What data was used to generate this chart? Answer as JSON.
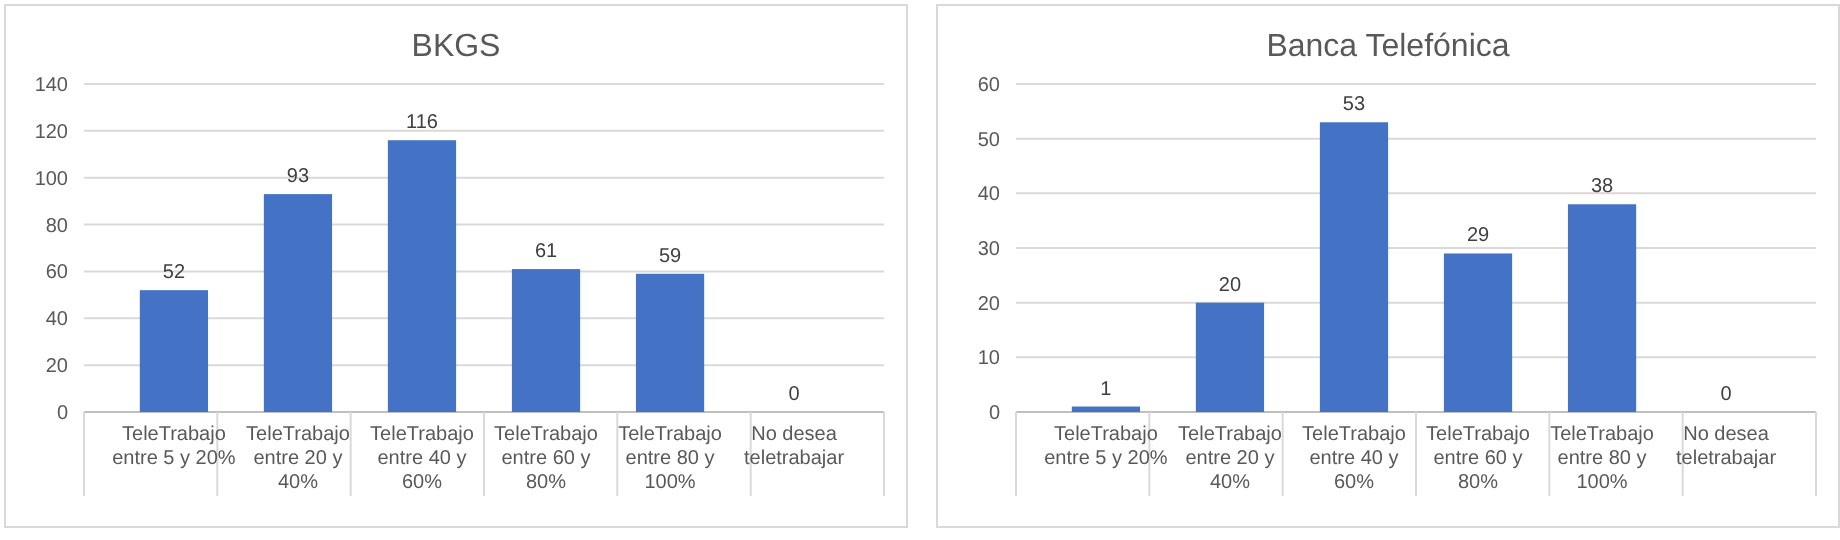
{
  "chart_data": [
    {
      "type": "bar",
      "title": "BKGS",
      "categories": [
        "TeleTrabajo entre 5 y 20%",
        "TeleTrabajo entre 20 y 40%",
        "TeleTrabajo entre 40 y 60%",
        "TeleTrabajo entre 60 y 80%",
        "TeleTrabajo entre 80 y 100%",
        "No desea teletrabajar"
      ],
      "values": [
        52,
        93,
        116,
        61,
        59,
        0
      ],
      "color": "#4472c4",
      "ylim": [
        0,
        140
      ],
      "yticks": [
        0,
        20,
        40,
        60,
        80,
        100,
        120,
        140
      ],
      "grid": "y",
      "data_labels": true
    },
    {
      "type": "bar",
      "title": "Banca Telefónica",
      "categories": [
        "TeleTrabajo entre 5 y 20%",
        "TeleTrabajo entre 20 y 40%",
        "TeleTrabajo entre 40 y 60%",
        "TeleTrabajo entre 60 y 80%",
        "TeleTrabajo entre 80 y 100%",
        "No desea teletrabajar"
      ],
      "values": [
        1,
        20,
        53,
        29,
        38,
        0
      ],
      "color": "#4472c4",
      "ylim": [
        0,
        60
      ],
      "yticks": [
        0,
        10,
        20,
        30,
        40,
        50,
        60
      ],
      "grid": "y",
      "data_labels": true
    }
  ]
}
